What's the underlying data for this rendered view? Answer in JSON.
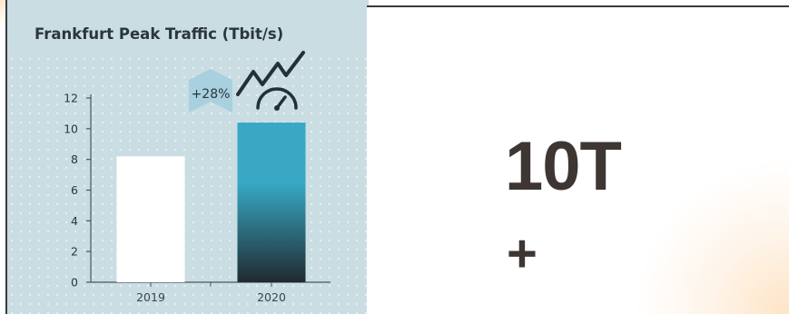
{
  "chart_data": {
    "type": "bar",
    "title": "Frankfurt Peak Traffic (Tbit/s)",
    "categories": [
      "2019",
      "2020"
    ],
    "values": [
      8.2,
      10.4
    ],
    "yticks": [
      "0",
      "2",
      "4",
      "6",
      "8",
      "10",
      "12"
    ],
    "ylim": [
      0,
      12
    ],
    "grid": false,
    "legend": "none",
    "annotation": "+28%",
    "colors": {
      "bar_2019": "#ffffff",
      "bar_2020_top": "#38a8c4",
      "bar_2020_bottom": "#1f2a30",
      "axis": "#4a5560",
      "badge": "#a9d0de",
      "icon": "#243038"
    }
  },
  "highlight": {
    "value": "10T",
    "suffix": "+"
  }
}
